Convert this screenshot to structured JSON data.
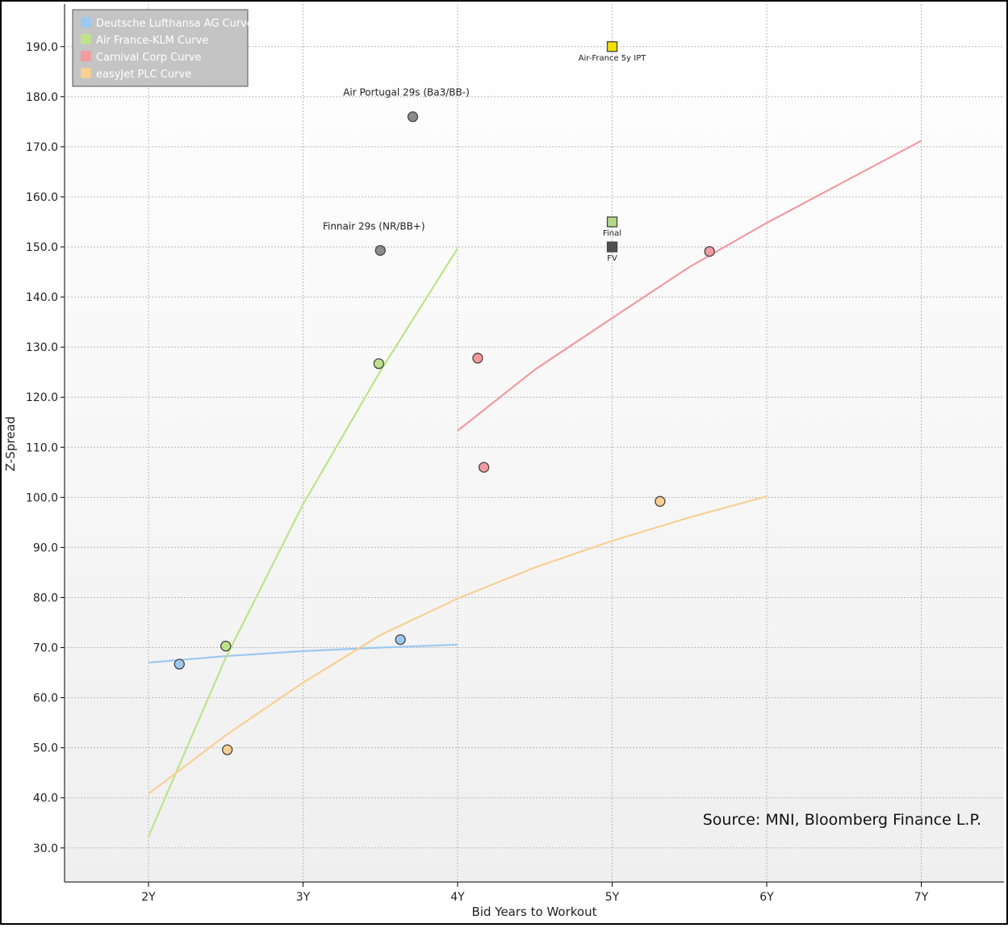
{
  "chart_data": {
    "type": "scatter",
    "x_label": "Bid Years to Workout",
    "y_label": "Z-Spread",
    "source": "Source: MNI, Bloomberg Finance L.P.",
    "xlim": [
      1.457,
      7.535
    ],
    "ylim": [
      23.2,
      198.5
    ],
    "xticks": [
      {
        "value": 2,
        "label": "2Y"
      },
      {
        "value": 3,
        "label": "3Y"
      },
      {
        "value": 4,
        "label": "4Y"
      },
      {
        "value": 5,
        "label": "5Y"
      },
      {
        "value": 6,
        "label": "6Y"
      },
      {
        "value": 7,
        "label": "7Y"
      }
    ],
    "yticks": [
      {
        "value": 30,
        "label": "30.0"
      },
      {
        "value": 40,
        "label": "40.0"
      },
      {
        "value": 50,
        "label": "50.0"
      },
      {
        "value": 60,
        "label": "60.0"
      },
      {
        "value": 70,
        "label": "70.0"
      },
      {
        "value": 80,
        "label": "80.0"
      },
      {
        "value": 90,
        "label": "90.0"
      },
      {
        "value": 100,
        "label": "100.0"
      },
      {
        "value": 110,
        "label": "110.0"
      },
      {
        "value": 120,
        "label": "120.0"
      },
      {
        "value": 130,
        "label": "130.0"
      },
      {
        "value": 140,
        "label": "140.0"
      },
      {
        "value": 150,
        "label": "150.0"
      },
      {
        "value": 160,
        "label": "160.0"
      },
      {
        "value": 170,
        "label": "170.0"
      },
      {
        "value": 180,
        "label": "180.0"
      },
      {
        "value": 190,
        "label": "190.0"
      }
    ],
    "grid": true,
    "legend": "upper left",
    "series": [
      {
        "name": "Deutsche Lufthansa AG Curve",
        "color": "#9cc8f0",
        "x": [
          2,
          2.5,
          3,
          3.5,
          4
        ],
        "values": [
          67.0,
          68.3,
          69.3,
          70.0,
          70.6
        ]
      },
      {
        "name": "Air France-KLM Curve",
        "color": "#bde38a",
        "x": [
          2,
          2.5,
          3,
          3.5,
          4
        ],
        "values": [
          32.3,
          68,
          98.6,
          125.2,
          149.7
        ]
      },
      {
        "name": "Carnival Corp Curve",
        "color": "#f29aa0",
        "x": [
          4,
          4.5,
          5,
          5.5,
          6,
          6.5,
          7
        ],
        "values": [
          113.3,
          125.5,
          135.8,
          146,
          154.8,
          163,
          171.2
        ]
      },
      {
        "name": "easyJet PLC Curve",
        "color": "#f8cf94",
        "x": [
          2,
          2.5,
          3,
          3.5,
          4,
          4.5,
          5,
          5.5,
          6
        ],
        "values": [
          40.8,
          52.5,
          63,
          72.5,
          79.8,
          86,
          91.3,
          96,
          100.2
        ]
      }
    ],
    "points": [
      {
        "color": "#9cc8f0",
        "shape": "circle",
        "x": [
          2.2,
          3.63
        ],
        "values": [
          66.7,
          71.6
        ]
      },
      {
        "color": "#bde38a",
        "shape": "circle",
        "x": [
          2.5,
          3.49
        ],
        "values": [
          70.3,
          126.7
        ]
      },
      {
        "color": "#f29aa0",
        "shape": "circle",
        "x": [
          4.13,
          4.17,
          5.63
        ],
        "values": [
          127.8,
          106.0,
          149.1
        ]
      },
      {
        "color": "#f8cf94",
        "shape": "circle",
        "x": [
          2.51,
          5.31
        ],
        "values": [
          49.6,
          99.2
        ]
      },
      {
        "color": "#8c8c8c",
        "shape": "circle",
        "x": [
          3.71
        ],
        "values": [
          176.0
        ],
        "label": "Air Portugal 29s (Ba3/BB-)"
      },
      {
        "color": "#8c8c8c",
        "shape": "circle",
        "x": [
          3.5
        ],
        "values": [
          149.3
        ],
        "label": "Finnair 29s (NR/BB+)"
      },
      {
        "color": "#f0e000",
        "shape": "square",
        "x": [
          5
        ],
        "values": [
          190
        ],
        "label": "Air-France 5y IPT"
      },
      {
        "color": "#b4d98a",
        "shape": "square",
        "x": [
          5
        ],
        "values": [
          155
        ],
        "label": "Final"
      },
      {
        "color": "#505050",
        "shape": "square",
        "x": [
          5
        ],
        "values": [
          150
        ],
        "label": "FV"
      }
    ]
  }
}
